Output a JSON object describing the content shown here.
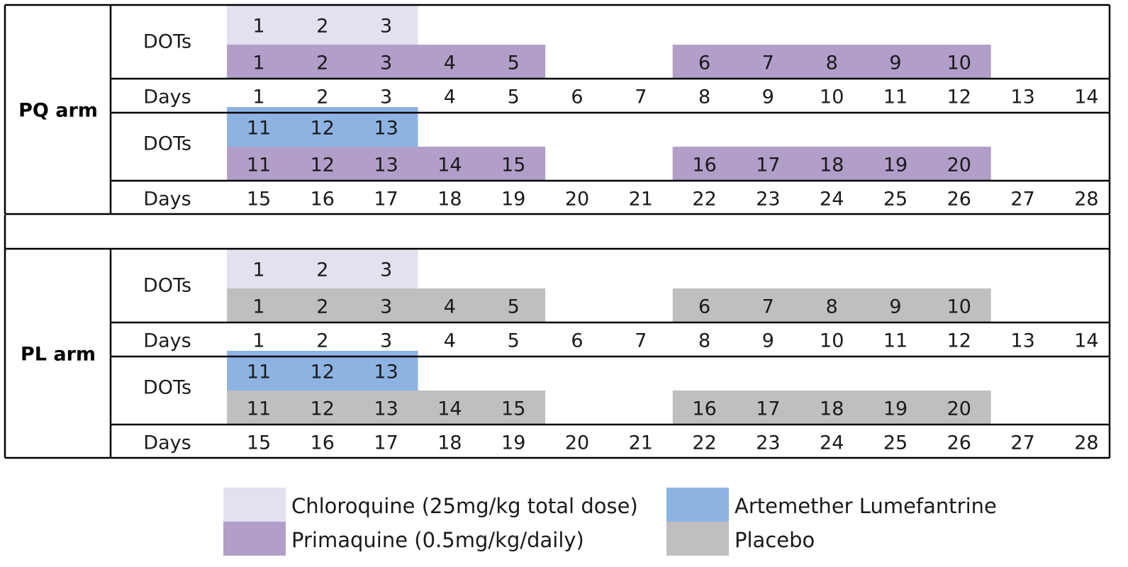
{
  "colors": {
    "chloroquine": "#e4e0ed",
    "primaquine": "#b19ec9",
    "artemether_lumefantrine": "#8db3e2",
    "placebo": "#bfbfbf"
  },
  "labels": {
    "dots": "DOTs",
    "days": "Days"
  },
  "arms": [
    {
      "label": "PQ arm",
      "weeks": [
        {
          "top_drug": "chloroquine",
          "top_doses": [
            "1",
            "2",
            "3"
          ],
          "bottom_drug": "primaquine",
          "bottom_doses_a": [
            "1",
            "2",
            "3",
            "4",
            "5"
          ],
          "bottom_doses_b": [
            "6",
            "7",
            "8",
            "9",
            "10"
          ],
          "days": [
            "1",
            "2",
            "3",
            "4",
            "5",
            "6",
            "7",
            "8",
            "9",
            "10",
            "11",
            "12",
            "13",
            "14"
          ]
        },
        {
          "top_drug": "artemether_lumefantrine",
          "top_doses": [
            "11",
            "12",
            "13"
          ],
          "bottom_drug": "primaquine",
          "bottom_doses_a": [
            "11",
            "12",
            "13",
            "14",
            "15"
          ],
          "bottom_doses_b": [
            "16",
            "17",
            "18",
            "19",
            "20"
          ],
          "days": [
            "15",
            "16",
            "17",
            "18",
            "19",
            "20",
            "21",
            "22",
            "23",
            "24",
            "25",
            "26",
            "27",
            "28"
          ]
        }
      ]
    },
    {
      "label": "PL arm",
      "weeks": [
        {
          "top_drug": "chloroquine",
          "top_doses": [
            "1",
            "2",
            "3"
          ],
          "bottom_drug": "placebo",
          "bottom_doses_a": [
            "1",
            "2",
            "3",
            "4",
            "5"
          ],
          "bottom_doses_b": [
            "6",
            "7",
            "8",
            "9",
            "10"
          ],
          "days": [
            "1",
            "2",
            "3",
            "4",
            "5",
            "6",
            "7",
            "8",
            "9",
            "10",
            "11",
            "12",
            "13",
            "14"
          ]
        },
        {
          "top_drug": "artemether_lumefantrine",
          "top_doses": [
            "11",
            "12",
            "13"
          ],
          "bottom_drug": "placebo",
          "bottom_doses_a": [
            "11",
            "12",
            "13",
            "14",
            "15"
          ],
          "bottom_doses_b": [
            "16",
            "17",
            "18",
            "19",
            "20"
          ],
          "days": [
            "15",
            "16",
            "17",
            "18",
            "19",
            "20",
            "21",
            "22",
            "23",
            "24",
            "25",
            "26",
            "27",
            "28"
          ]
        }
      ]
    }
  ],
  "legend": [
    {
      "drug": "chloroquine",
      "label": "Chloroquine (25mg/kg total dose)"
    },
    {
      "drug": "primaquine",
      "label": "Primaquine (0.5mg/kg/daily)"
    },
    {
      "drug": "artemether_lumefantrine",
      "label": "Artemether Lumefantrine"
    },
    {
      "drug": "placebo",
      "label": "Placebo"
    }
  ]
}
